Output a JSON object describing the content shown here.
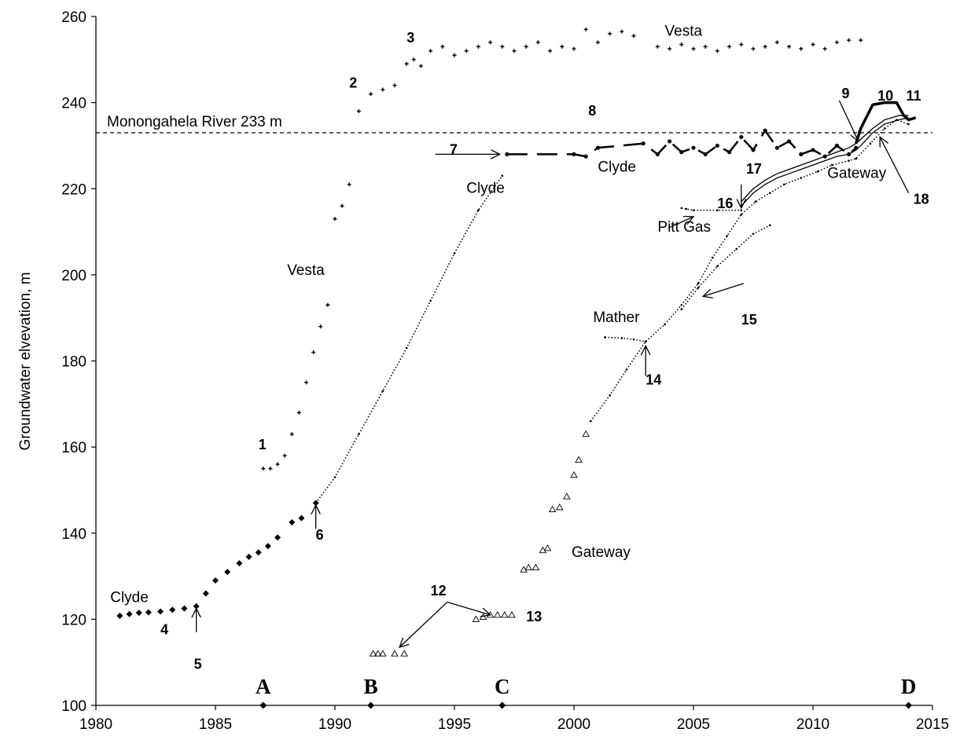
{
  "chart_data": {
    "type": "scatter",
    "xlabel": "",
    "ylabel": "Groundwater elvevation, m",
    "xlim": [
      1980,
      2015
    ],
    "ylim": [
      100,
      260
    ],
    "x_ticks": [
      "1980",
      "1985",
      "1990",
      "1995",
      "2000",
      "2005",
      "2010",
      "2015"
    ],
    "y_ticks": [
      "100",
      "120",
      "140",
      "160",
      "180",
      "200",
      "220",
      "240",
      "260"
    ],
    "grid": false,
    "reference_line": {
      "label": "Monongahela River 233 m",
      "y": 233
    },
    "series": [
      {
        "name": "Clyde",
        "marker": "diamond",
        "x": [
          1981.0,
          1981.4,
          1981.8,
          1982.2,
          1982.7,
          1983.2,
          1983.7,
          1984.2,
          1984.6,
          1985.0,
          1985.5,
          1986.0,
          1986.4,
          1986.8,
          1987.2,
          1987.6,
          1988.2,
          1988.6,
          1989.2
        ],
        "y": [
          120.8,
          121.2,
          121.5,
          121.6,
          121.8,
          122.2,
          122.5,
          123.0,
          126.0,
          129.0,
          131.0,
          133.0,
          134.5,
          135.5,
          137.0,
          139.0,
          142.5,
          143.5,
          147.0
        ]
      },
      {
        "name": "Clyde",
        "marker": "dot",
        "x": [
          1989.2,
          1990.0,
          1991.0,
          1992.0,
          1993.0,
          1994.0,
          1995.0,
          1996.0,
          1997.0
        ],
        "y": [
          147.0,
          153.0,
          163.0,
          173.0,
          183.0,
          194.0,
          205.0,
          215.0,
          223.0
        ]
      },
      {
        "name": "Clyde",
        "marker": "heavy",
        "x": [
          1997.2,
          2000.0,
          2000.5,
          2001.0,
          2002.9,
          2003.5,
          2004.0,
          2004.5,
          2005.0,
          2005.5,
          2006.0,
          2006.5,
          2007.0,
          2007.5,
          2008.0,
          2008.5,
          2009.0,
          2009.5,
          2010.0,
          2010.5,
          2011.0,
          2011.5,
          2011.8
        ],
        "y": [
          228.0,
          228.0,
          227.5,
          229.5,
          230.5,
          228.0,
          231.0,
          228.5,
          229.5,
          228.0,
          230.0,
          228.5,
          232.0,
          229.0,
          233.5,
          229.5,
          231.0,
          228.0,
          229.0,
          227.5,
          230.0,
          228.0,
          229.5
        ]
      },
      {
        "name": "Vesta",
        "marker": "plus",
        "x": [
          1987.0,
          1987.3,
          1987.6,
          1987.9,
          1988.2,
          1988.5,
          1988.8,
          1989.1,
          1989.4,
          1989.7,
          1990.0,
          1990.3,
          1990.6,
          1991.0,
          1991.5,
          1992.0,
          1992.5,
          1993.0,
          1993.3,
          1993.6,
          1994.0,
          1994.5,
          1995.0,
          1995.5,
          1996.0,
          1996.5,
          1997.0,
          1997.5,
          1998.0,
          1998.5,
          1999.0,
          1999.5,
          2000.0,
          2000.5,
          2001.0,
          2001.5,
          2002.0,
          2002.5,
          2003.5,
          2004.0,
          2004.5,
          2005.0,
          2005.5,
          2006.0,
          2006.5,
          2007.0,
          2007.5,
          2008.0,
          2008.5,
          2009.0,
          2009.5,
          2010.0,
          2010.5,
          2011.0,
          2011.5,
          2012.0
        ],
        "y": [
          155.0,
          155.0,
          156.0,
          158.0,
          163.0,
          168.0,
          175.0,
          182.0,
          188.0,
          193.0,
          213.0,
          216.0,
          221.0,
          238.0,
          242.0,
          243.0,
          244.0,
          249.0,
          250.0,
          248.5,
          252.0,
          253.0,
          251.0,
          252.0,
          253.0,
          254.0,
          253.0,
          252.0,
          253.0,
          254.0,
          252.0,
          253.0,
          252.5,
          257.0,
          254.0,
          256.0,
          256.5,
          255.5,
          253.0,
          252.5,
          253.5,
          252.5,
          253.0,
          252.0,
          253.0,
          253.5,
          252.5,
          253.0,
          254.0,
          253.0,
          252.5,
          253.5,
          252.5,
          254.0,
          254.5,
          254.5
        ]
      },
      {
        "name": "Gateway",
        "marker": "triangle",
        "x": [
          1991.6,
          1991.8,
          1992.0,
          1992.5,
          1992.9,
          1995.9,
          1996.2,
          1996.5,
          1996.8,
          1997.1,
          1997.4,
          1997.9,
          1998.1,
          1998.4,
          1998.7,
          1998.9,
          1999.1,
          1999.4,
          1999.7,
          2000.0,
          2000.2,
          2000.5
        ],
        "y": [
          112.0,
          112.0,
          112.0,
          112.0,
          112.0,
          120.0,
          120.5,
          121.0,
          121.0,
          121.0,
          121.0,
          131.5,
          132.0,
          132.0,
          136.0,
          136.5,
          145.5,
          146.0,
          148.5,
          153.5,
          157.0,
          163.0
        ]
      },
      {
        "name": "Gateway",
        "marker": "dot",
        "x": [
          2000.7,
          2001.5,
          2002.2,
          2003.0,
          2003.8,
          2004.5,
          2005.2,
          2005.8,
          2006.4,
          2007.0,
          2007.6,
          2008.2,
          2008.8,
          2009.5,
          2010.2,
          2010.8,
          2011.5,
          2011.8,
          2012.4,
          2013.0,
          2013.5,
          2014.0
        ],
        "y": [
          166.0,
          172.0,
          178.0,
          184.5,
          188.5,
          193.0,
          198.0,
          204.0,
          209.0,
          214.0,
          217.0,
          219.0,
          221.0,
          222.5,
          224.0,
          225.5,
          226.5,
          227.0,
          230.5,
          234.0,
          236.0,
          235.0
        ]
      },
      {
        "name": "Mather",
        "marker": "dot",
        "x": [
          2001.3,
          2002.0,
          2002.5,
          2003.0
        ],
        "y": [
          185.5,
          185.3,
          185.0,
          184.5
        ]
      },
      {
        "name": "Pitt Gas",
        "marker": "dot",
        "x": [
          2004.5,
          2004.7,
          2005.0,
          2006.0,
          2007.0
        ],
        "y": [
          215.5,
          215.3,
          215.0,
          215.0,
          215.0
        ]
      },
      {
        "name": "",
        "marker": "dot",
        "x": [
          2004.5,
          2005.2,
          2006.0,
          2006.8,
          2007.5,
          2008.2
        ],
        "y": [
          192.0,
          197.0,
          202.0,
          206.0,
          209.5,
          211.5
        ]
      },
      {
        "name": "",
        "marker": "line",
        "x": [
          2007.0,
          2007.5,
          2008.0,
          2008.5,
          2009.0,
          2009.5,
          2010.0,
          2010.5,
          2011.0,
          2011.5,
          2011.8,
          2012.0,
          2012.5,
          2013.0,
          2013.3,
          2013.6,
          2014.0
        ],
        "y": [
          216.0,
          219.0,
          221.0,
          222.5,
          223.5,
          224.5,
          225.5,
          226.5,
          227.5,
          228.0,
          229.0,
          230.0,
          233.0,
          235.0,
          235.5,
          236.0,
          236.5
        ]
      },
      {
        "name": "",
        "marker": "line",
        "x": [
          2007.0,
          2007.5,
          2008.0,
          2008.5,
          2009.0,
          2009.5,
          2010.0,
          2010.5,
          2011.0,
          2011.5,
          2011.8,
          2012.0,
          2012.5,
          2013.0,
          2013.3,
          2013.6,
          2014.0
        ],
        "y": [
          217.0,
          220.0,
          222.0,
          223.5,
          224.5,
          225.5,
          226.5,
          227.5,
          228.5,
          229.5,
          230.5,
          231.5,
          234.0,
          236.0,
          236.5,
          237.0,
          237.0
        ]
      },
      {
        "name": "",
        "marker": "heavy-line",
        "x": [
          2011.8,
          2012.0,
          2012.5,
          2013.0,
          2013.5,
          2013.8,
          2014.0,
          2014.3
        ],
        "y": [
          230.5,
          234.0,
          239.5,
          240.0,
          240.0,
          237.0,
          236.0,
          236.5
        ]
      }
    ],
    "event_markers": [
      {
        "label": "A",
        "x": 1987.0
      },
      {
        "label": "B",
        "x": 1991.5
      },
      {
        "label": "C",
        "x": 1997.0
      },
      {
        "label": "D",
        "x": 2014.0
      }
    ],
    "annotations": [
      {
        "text": "Vesta",
        "x": 2003.8,
        "y": 255.5,
        "style": "label"
      },
      {
        "text": "Clyde",
        "x": 2001.0,
        "y": 224.0,
        "style": "label"
      },
      {
        "text": "Clyde",
        "x": 1995.5,
        "y": 219.0,
        "style": "label"
      },
      {
        "text": "Vesta",
        "x": 1988.0,
        "y": 200.0,
        "style": "label"
      },
      {
        "text": "Pitt Gas",
        "x": 2003.5,
        "y": 210.0,
        "style": "label"
      },
      {
        "text": "Mather",
        "x": 2000.8,
        "y": 189.0,
        "style": "label"
      },
      {
        "text": "Gateway",
        "x": 1999.9,
        "y": 134.5,
        "style": "label"
      },
      {
        "text": "Gateway",
        "x": 2010.6,
        "y": 222.5,
        "style": "label"
      },
      {
        "text": "Clyde",
        "x": 1980.6,
        "y": 124.0,
        "style": "label"
      },
      {
        "text": "1",
        "x": 1986.8,
        "y": 159.5,
        "style": "num"
      },
      {
        "text": "2",
        "x": 1990.6,
        "y": 243.5,
        "style": "num"
      },
      {
        "text": "3",
        "x": 1993.0,
        "y": 254.0,
        "style": "num"
      },
      {
        "text": "4",
        "x": 1982.7,
        "y": 116.5,
        "style": "num"
      },
      {
        "text": "5",
        "x": 1984.1,
        "y": 108.5,
        "style": "num"
      },
      {
        "text": "6",
        "x": 1989.2,
        "y": 138.5,
        "style": "num"
      },
      {
        "text": "7",
        "x": 1994.8,
        "y": 228.0,
        "style": "num"
      },
      {
        "text": "8",
        "x": 2000.6,
        "y": 237.0,
        "style": "num"
      },
      {
        "text": "9",
        "x": 2011.2,
        "y": 241.0,
        "style": "num"
      },
      {
        "text": "10",
        "x": 2012.7,
        "y": 240.5,
        "style": "num"
      },
      {
        "text": "11",
        "x": 2013.9,
        "y": 240.5,
        "style": "num"
      },
      {
        "text": "12",
        "x": 1994.0,
        "y": 125.5,
        "style": "num"
      },
      {
        "text": "13",
        "x": 1998.0,
        "y": 119.5,
        "style": "num"
      },
      {
        "text": "14",
        "x": 2003.0,
        "y": 174.5,
        "style": "num"
      },
      {
        "text": "15",
        "x": 2007.0,
        "y": 188.5,
        "style": "num"
      },
      {
        "text": "16",
        "x": 2006.0,
        "y": 215.5,
        "style": "num"
      },
      {
        "text": "17",
        "x": 2007.2,
        "y": 223.5,
        "style": "num"
      },
      {
        "text": "18",
        "x": 2014.2,
        "y": 216.5,
        "style": "num"
      }
    ],
    "arrows": [
      {
        "from": [
          1994.2,
          228.0
        ],
        "to": [
          1996.9,
          228.0
        ]
      },
      {
        "from": [
          1984.2,
          117.0
        ],
        "to": [
          1984.2,
          122.5
        ]
      },
      {
        "from": [
          1989.2,
          141.0
        ],
        "to": [
          1989.2,
          146.5
        ]
      },
      {
        "from": [
          2003.0,
          176.5
        ],
        "to": [
          2003.0,
          183.5
        ]
      },
      {
        "from": [
          2007.1,
          198.0
        ],
        "to": [
          2005.4,
          195.0
        ]
      },
      {
        "from": [
          2004.0,
          211.0
        ],
        "to": [
          2005.0,
          213.5
        ]
      },
      {
        "from": [
          2007.0,
          221.0
        ],
        "to": [
          2007.0,
          215.5
        ]
      },
      {
        "from": [
          2014.0,
          219.0
        ],
        "to": [
          2012.8,
          232.0
        ]
      },
      {
        "from": [
          2011.1,
          240.5
        ],
        "to": [
          2011.9,
          231.0
        ]
      },
      {
        "from": [
          1994.7,
          124.0
        ],
        "to": [
          1992.7,
          113.5
        ]
      },
      {
        "from": [
          1994.7,
          124.0
        ],
        "to": [
          1996.5,
          121.0
        ]
      }
    ]
  }
}
